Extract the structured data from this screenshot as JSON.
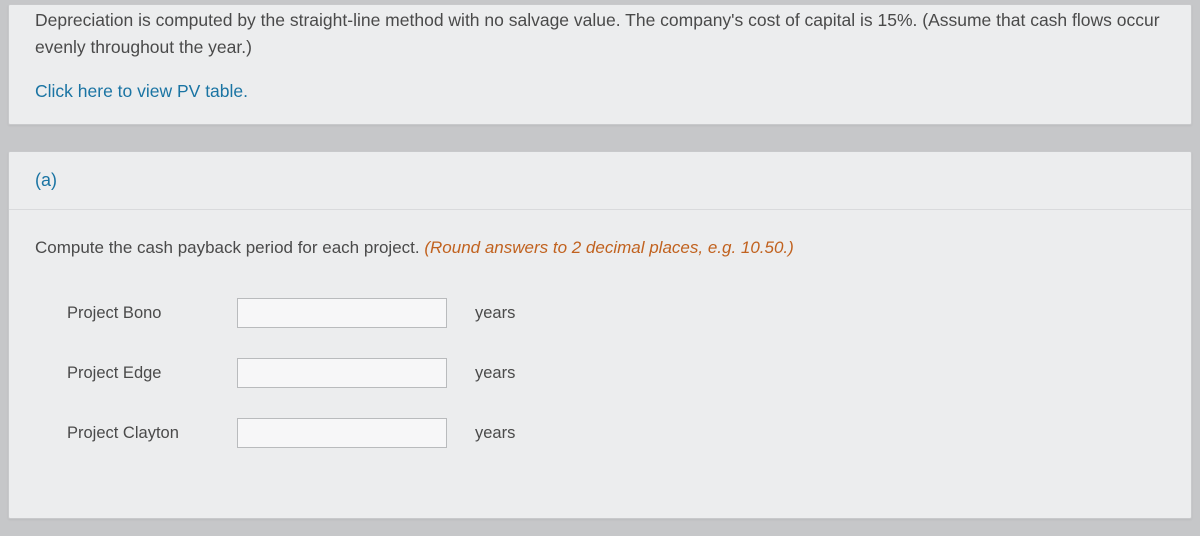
{
  "intro": {
    "text": "Depreciation is computed by the straight-line method with no salvage value. The company's cost of capital is 15%. (Assume that cash flows occur evenly throughout the year.)",
    "pv_link": "Click here to view PV table."
  },
  "question": {
    "part_label": "(a)",
    "instruction_main": "Compute the cash payback period for each project. ",
    "instruction_hint": "(Round answers to 2 decimal places, e.g. 10.50.)",
    "unit_label": "years",
    "projects": [
      {
        "name": "Project Bono",
        "value": ""
      },
      {
        "name": "Project Edge",
        "value": ""
      },
      {
        "name": "Project Clayton",
        "value": ""
      }
    ]
  },
  "colors": {
    "page_bg": "#c6c7c9",
    "panel_bg": "#ecedee",
    "panel_border": "#c8c9cb",
    "text": "#4a4a4a",
    "link": "#1a74a3",
    "hint": "#c1621f",
    "input_border": "#b9bbbd",
    "input_bg": "#f7f7f8"
  }
}
